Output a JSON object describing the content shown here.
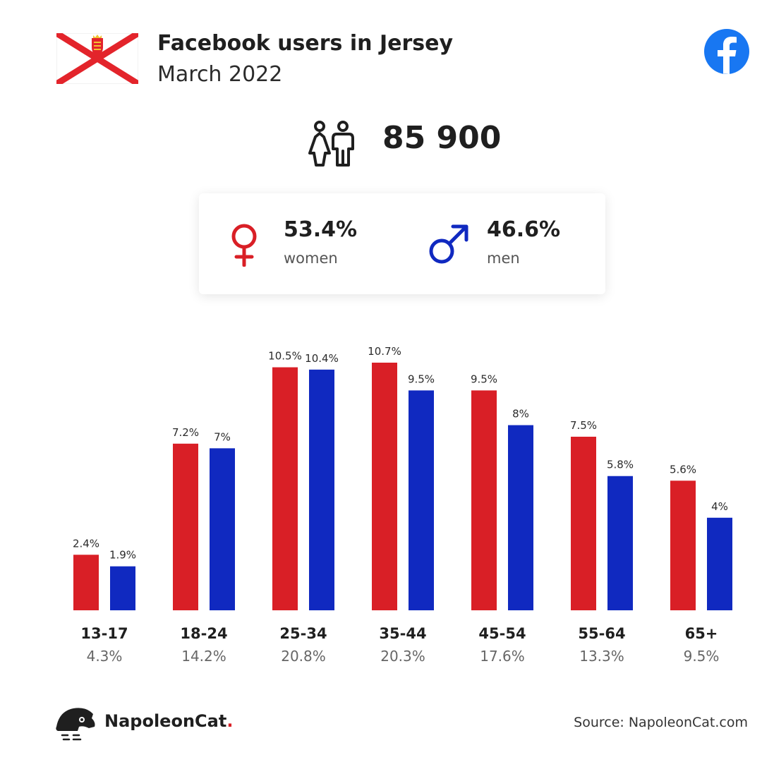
{
  "header": {
    "title": "Facebook users in Jersey",
    "subtitle": "March 2022"
  },
  "total_users": "85 900",
  "gender": {
    "women": {
      "percent": "53.4%",
      "label": "women",
      "color": "#d91f26"
    },
    "men": {
      "percent": "46.6%",
      "label": "men",
      "color": "#1029c0"
    }
  },
  "icons": {
    "flag": "jersey-flag-icon",
    "facebook": "facebook-logo-icon",
    "people": "people-icon",
    "female": "female-symbol-icon",
    "male": "male-symbol-icon",
    "brand_logo": "napoleoncat-logo-icon"
  },
  "chart_data": {
    "type": "bar",
    "categories": [
      "13-17",
      "18-24",
      "25-34",
      "35-44",
      "45-54",
      "55-64",
      "65+"
    ],
    "category_totals": [
      "4.3%",
      "14.2%",
      "20.8%",
      "20.3%",
      "17.6%",
      "13.3%",
      "9.5%"
    ],
    "series": [
      {
        "values": [
          2.4,
          7.2,
          10.5,
          10.7,
          9.5,
          7.5,
          5.6
        ],
        "labels": [
          "2.4%",
          "7.2%",
          "10.5%",
          "10.7%",
          "9.5%",
          "7.5%",
          "5.6%"
        ],
        "color": "#d91f26"
      },
      {
        "values": [
          1.9,
          7,
          10.4,
          9.5,
          8,
          5.8,
          4
        ],
        "labels": [
          "1.9%",
          "7%",
          "10.4%",
          "9.5%",
          "8%",
          "5.8%",
          "4%"
        ],
        "color": "#1029c0"
      }
    ],
    "ylim": [
      0,
      10.7
    ],
    "grid": false
  },
  "footer": {
    "brand": "NapoleonCat",
    "brand_dot": ".",
    "source": "Source: NapoleonCat.com"
  }
}
